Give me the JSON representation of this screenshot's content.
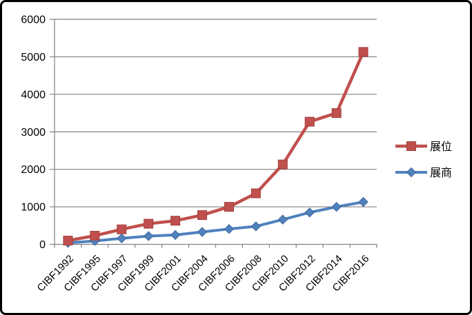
{
  "chart_data": {
    "type": "line",
    "categories": [
      "CIBF1992",
      "CIBF1995",
      "CIBF1997",
      "CIBF1999",
      "CIBF2001",
      "CIBF2004",
      "CIBF2006",
      "CIBF2008",
      "CIBF2010",
      "CIBF2012",
      "CIBF2014",
      "CIBF2016"
    ],
    "series": [
      {
        "name": "展位",
        "marker": "square",
        "color": "#C0504D",
        "marker_stroke": "#A0403E",
        "values": [
          100,
          230,
          400,
          550,
          630,
          780,
          1000,
          1360,
          2130,
          3270,
          3500,
          5130
        ]
      },
      {
        "name": "展商",
        "marker": "diamond",
        "color": "#4F81BD",
        "marker_stroke": "#40699C",
        "values": [
          40,
          90,
          160,
          220,
          250,
          330,
          410,
          480,
          660,
          850,
          1000,
          1130
        ]
      }
    ],
    "title": "",
    "xlabel": "",
    "ylabel": "",
    "ylim": [
      0,
      6000
    ],
    "yticks": [
      0,
      1000,
      2000,
      3000,
      4000,
      5000,
      6000
    ],
    "grid": true,
    "legend_position": "right",
    "colors": {
      "gridline": "#808080",
      "axis": "#808080",
      "tick_text": "#000000",
      "legend_text": "#000000",
      "background": "#FFFFFF",
      "frame_border": "#000000"
    }
  }
}
